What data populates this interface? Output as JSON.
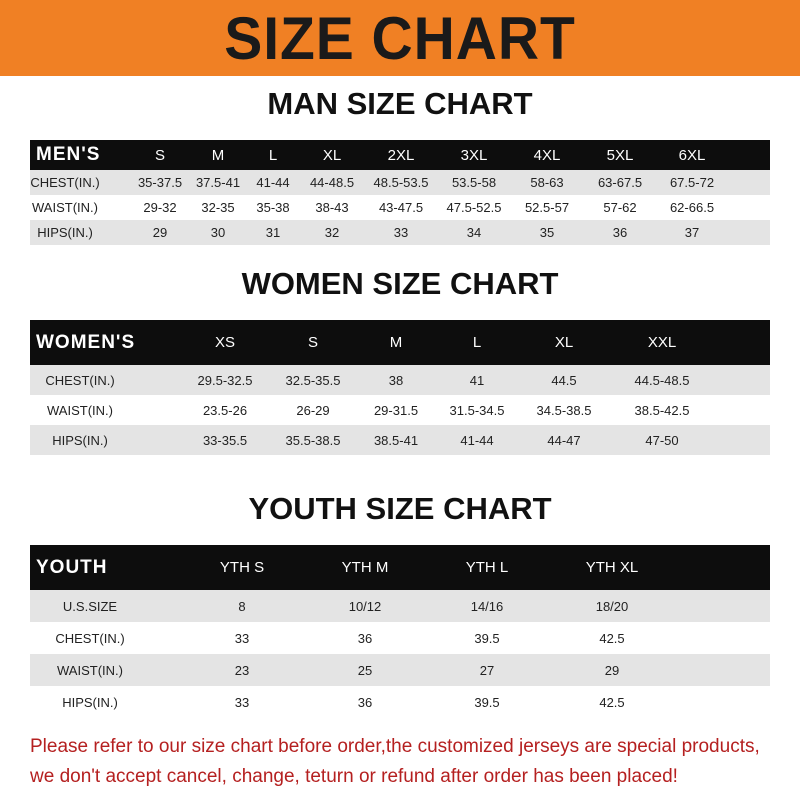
{
  "banner_title": "SIZE CHART",
  "men": {
    "title": "MAN SIZE CHART",
    "header": [
      "MEN'S",
      "S",
      "M",
      "L",
      "XL",
      "2XL",
      "3XL",
      "4XL",
      "5XL",
      "6XL"
    ],
    "rows": [
      [
        "CHEST(IN.)",
        "35-37.5",
        "37.5-41",
        "41-44",
        "44-48.5",
        "48.5-53.5",
        "53.5-58",
        "58-63",
        "63-67.5",
        "67.5-72"
      ],
      [
        "WAIST(IN.)",
        "29-32",
        "32-35",
        "35-38",
        "38-43",
        "43-47.5",
        "47.5-52.5",
        "52.5-57",
        "57-62",
        "62-66.5"
      ],
      [
        "HIPS(IN.)",
        "29",
        "30",
        "31",
        "32",
        "33",
        "34",
        "35",
        "36",
        "37"
      ]
    ]
  },
  "women": {
    "title": "WOMEN SIZE CHART",
    "header": [
      "WOMEN'S",
      "XS",
      "S",
      "M",
      "L",
      "XL",
      "XXL"
    ],
    "rows": [
      [
        "CHEST(IN.)",
        "29.5-32.5",
        "32.5-35.5",
        "38",
        "41",
        "44.5",
        "44.5-48.5"
      ],
      [
        "WAIST(IN.)",
        "23.5-26",
        "26-29",
        "29-31.5",
        "31.5-34.5",
        "34.5-38.5",
        "38.5-42.5"
      ],
      [
        "HIPS(IN.)",
        "33-35.5",
        "35.5-38.5",
        "38.5-41",
        "41-44",
        "44-47",
        "47-50"
      ]
    ]
  },
  "youth": {
    "title": "YOUTH SIZE CHART",
    "header": [
      "YOUTH",
      "YTH S",
      "YTH M",
      "YTH L",
      "YTH XL"
    ],
    "rows": [
      [
        "U.S.SIZE",
        "8",
        "10/12",
        "14/16",
        "18/20"
      ],
      [
        "CHEST(IN.)",
        "33",
        "36",
        "39.5",
        "42.5"
      ],
      [
        "WAIST(IN.)",
        "23",
        "25",
        "27",
        "29"
      ],
      [
        "HIPS(IN.)",
        "33",
        "36",
        "39.5",
        "42.5"
      ]
    ]
  },
  "footer": {
    "line1": "Please refer to our size chart before order,the customized jerseys are special products,",
    "line2": "we don't accept cancel, change, teturn or refund after order has been placed!"
  },
  "colors": {
    "banner": "#f08024",
    "header_row": "#0d0d0d",
    "stripe": "#e4e4e4",
    "notice": "#b52020"
  }
}
